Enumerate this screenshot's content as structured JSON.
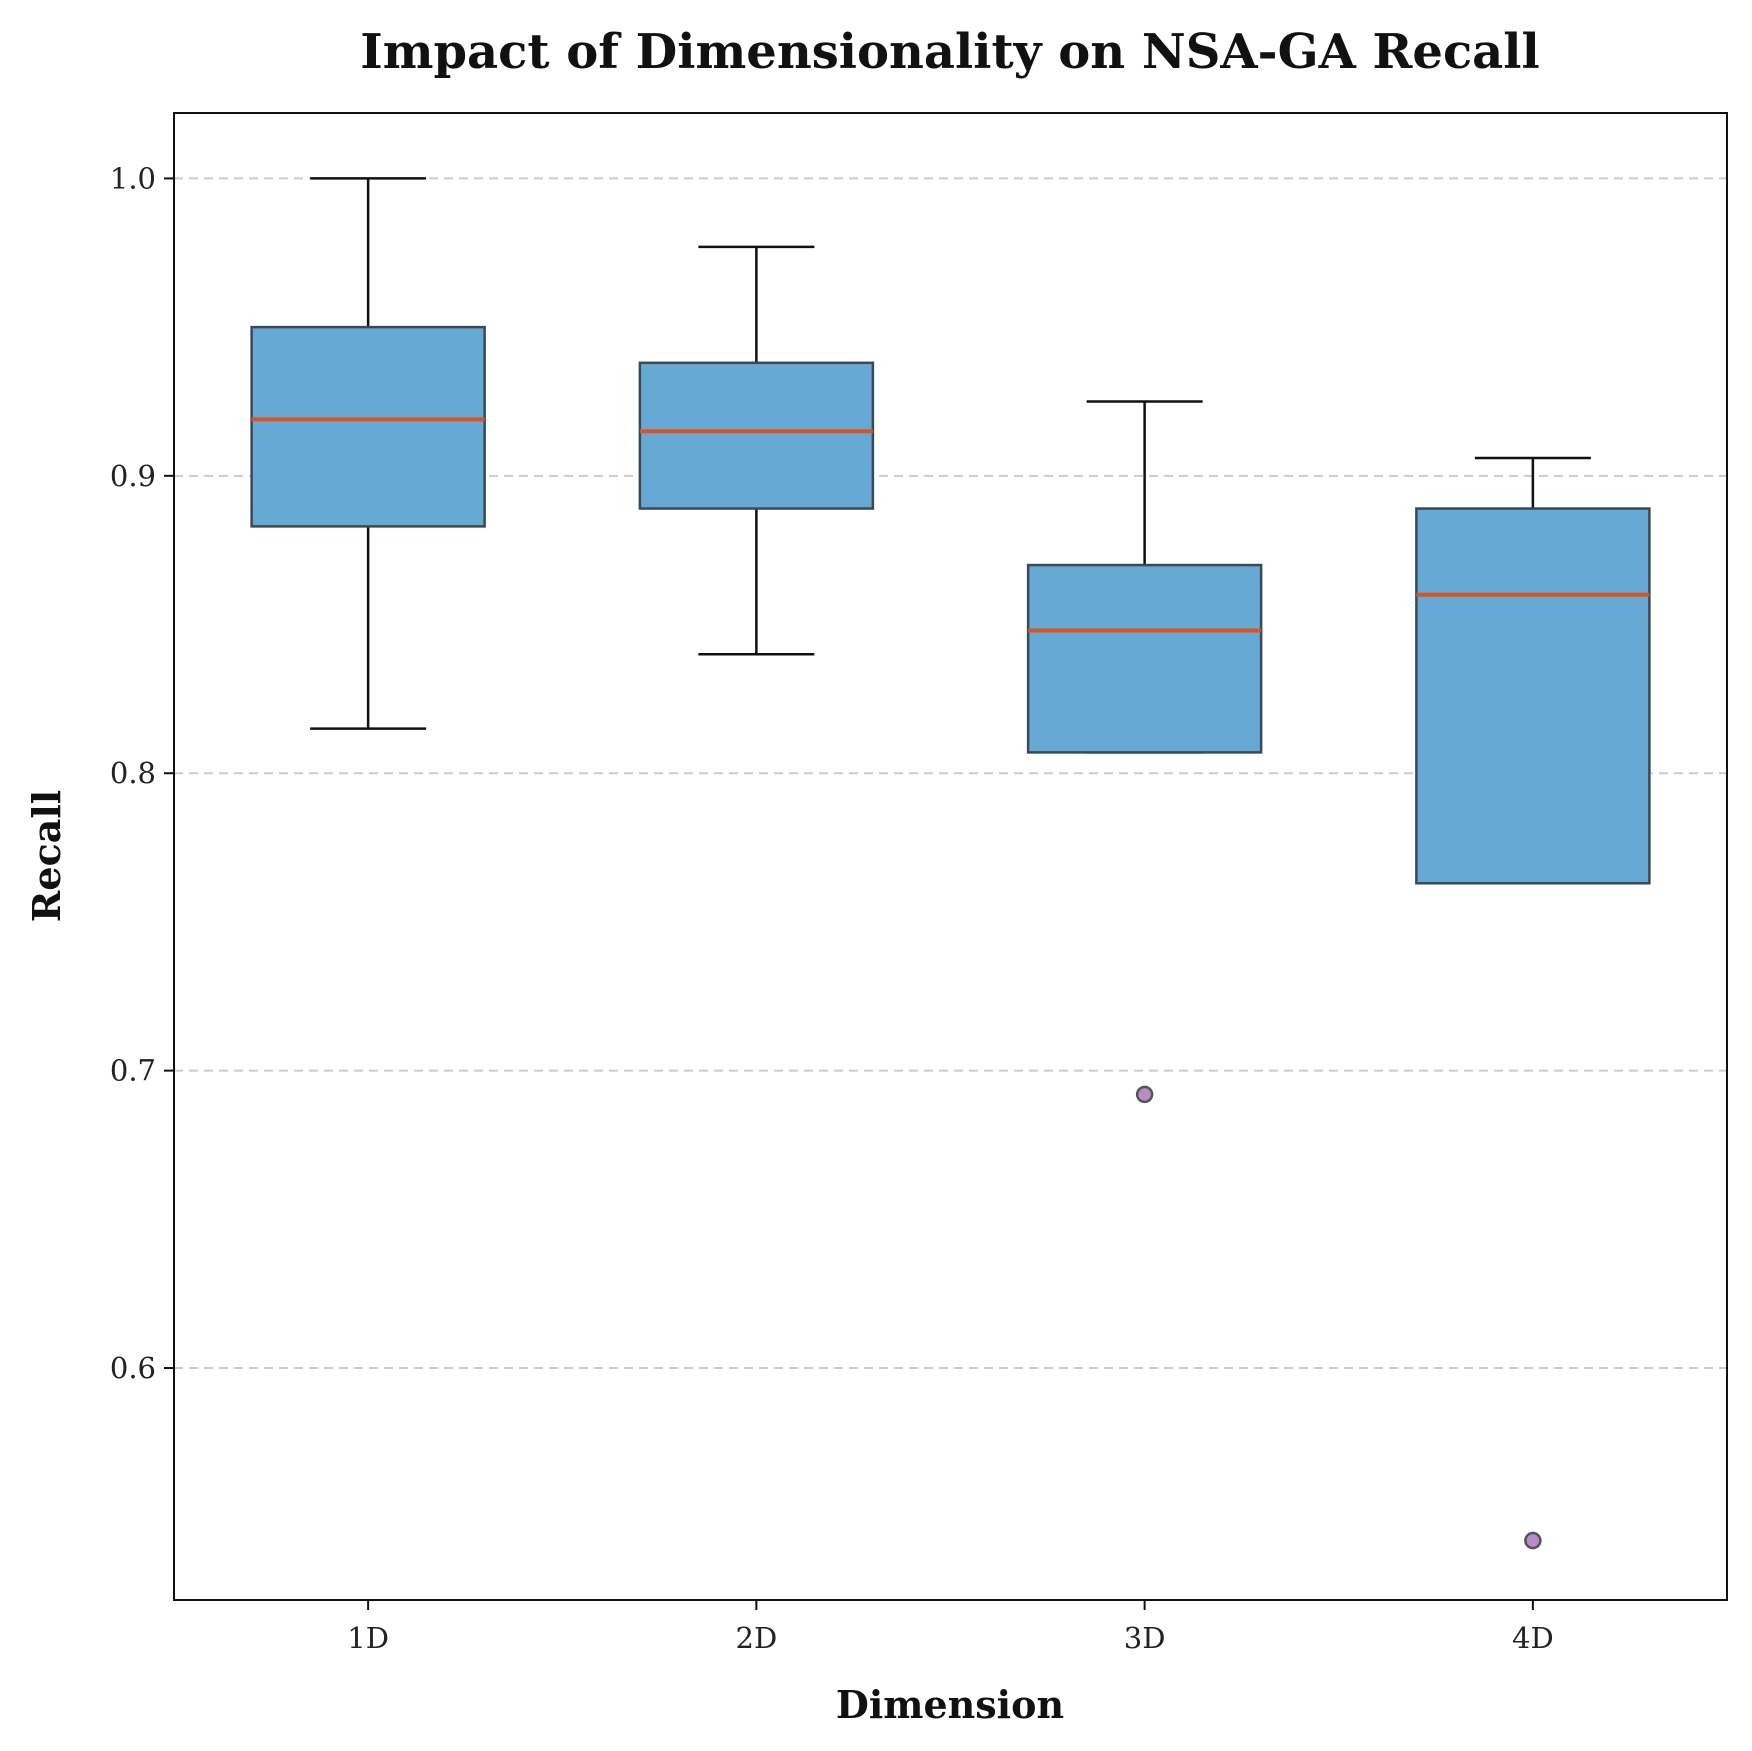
{
  "chart_data": {
    "type": "box",
    "title": "Impact of Dimensionality on NSA-GA Recall",
    "xlabel": "Dimension",
    "ylabel": "Recall",
    "ylim": [
      0.522,
      1.022
    ],
    "yticks": [
      0.6,
      0.7,
      0.8,
      0.9,
      1.0
    ],
    "ytick_labels": [
      "0.6",
      "0.7",
      "0.8",
      "0.9",
      "1.0"
    ],
    "grid": "y-dashed",
    "categories": [
      "1D",
      "2D",
      "3D",
      "4D"
    ],
    "boxes": [
      {
        "category": "1D",
        "whisker_low": 0.815,
        "q1": 0.883,
        "median": 0.919,
        "q3": 0.95,
        "whisker_high": 1.0,
        "outliers": []
      },
      {
        "category": "2D",
        "whisker_low": 0.84,
        "q1": 0.889,
        "median": 0.915,
        "q3": 0.938,
        "whisker_high": 0.977,
        "outliers": []
      },
      {
        "category": "3D",
        "whisker_low": 0.807,
        "q1": 0.807,
        "median": 0.848,
        "q3": 0.87,
        "whisker_high": 0.925,
        "outliers": [
          0.692
        ]
      },
      {
        "category": "4D",
        "whisker_low": 0.763,
        "q1": 0.763,
        "median": 0.86,
        "q3": 0.889,
        "whisker_high": 0.906,
        "outliers": [
          0.542
        ]
      }
    ],
    "colors": {
      "box_fill": "#67a9d5",
      "box_edge": "#3a4a55",
      "median": "#d9541e",
      "whisker": "#111111",
      "outlier_fill": "#b98cc7",
      "outlier_edge": "#555555",
      "grid": "#cccccc"
    }
  }
}
